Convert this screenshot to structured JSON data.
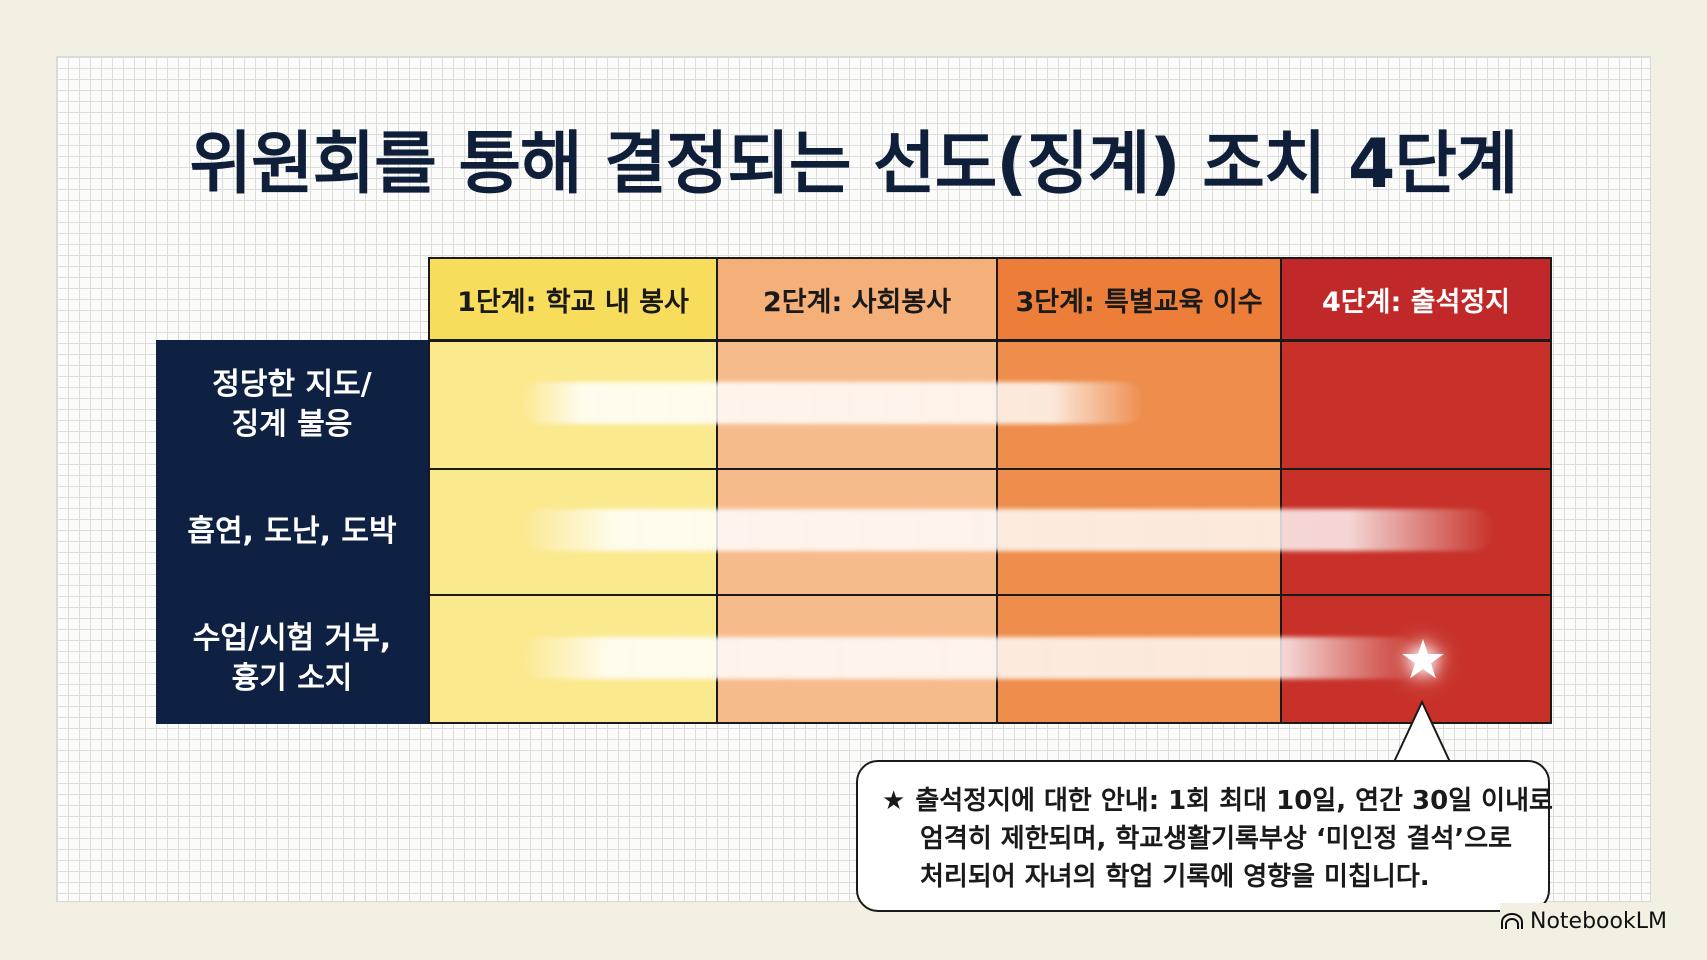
{
  "title": "위원회를 통해 결정되는 선도(징계) 조치 4단계",
  "columns": [
    {
      "label": "1단계: 학교 내 봉사",
      "color": "#f8dc5c",
      "cell_color": "#fbe98e"
    },
    {
      "label": "2단계: 사회봉사",
      "color": "#f5b07a",
      "cell_color": "#f6bb8b"
    },
    {
      "label": "3단계: 특별교육 이수",
      "color": "#ec7e3a",
      "cell_color": "#ee8d4c"
    },
    {
      "label": "4단계: 출석정지",
      "color": "#c0282a",
      "cell_color": "#c73129"
    }
  ],
  "rows": [
    {
      "label": "정당한 지도/\n징계 불응"
    },
    {
      "label": "흡연, 도난, 도박"
    },
    {
      "label": "수업/시험 거부,\n흉기 소지"
    }
  ],
  "callout": {
    "star": "★",
    "lines": [
      "출석정지에 대한 안내: 1회 최대 10일, 연간 30일 이내로",
      "엄격히 제한되며, 학교생활기록부상 ‘미인정 결석’으로",
      "처리되어 자녀의 학업 기록에 영향을 미칩니다."
    ]
  },
  "marker_icon": "star-icon",
  "brand": "NotebookLM"
}
